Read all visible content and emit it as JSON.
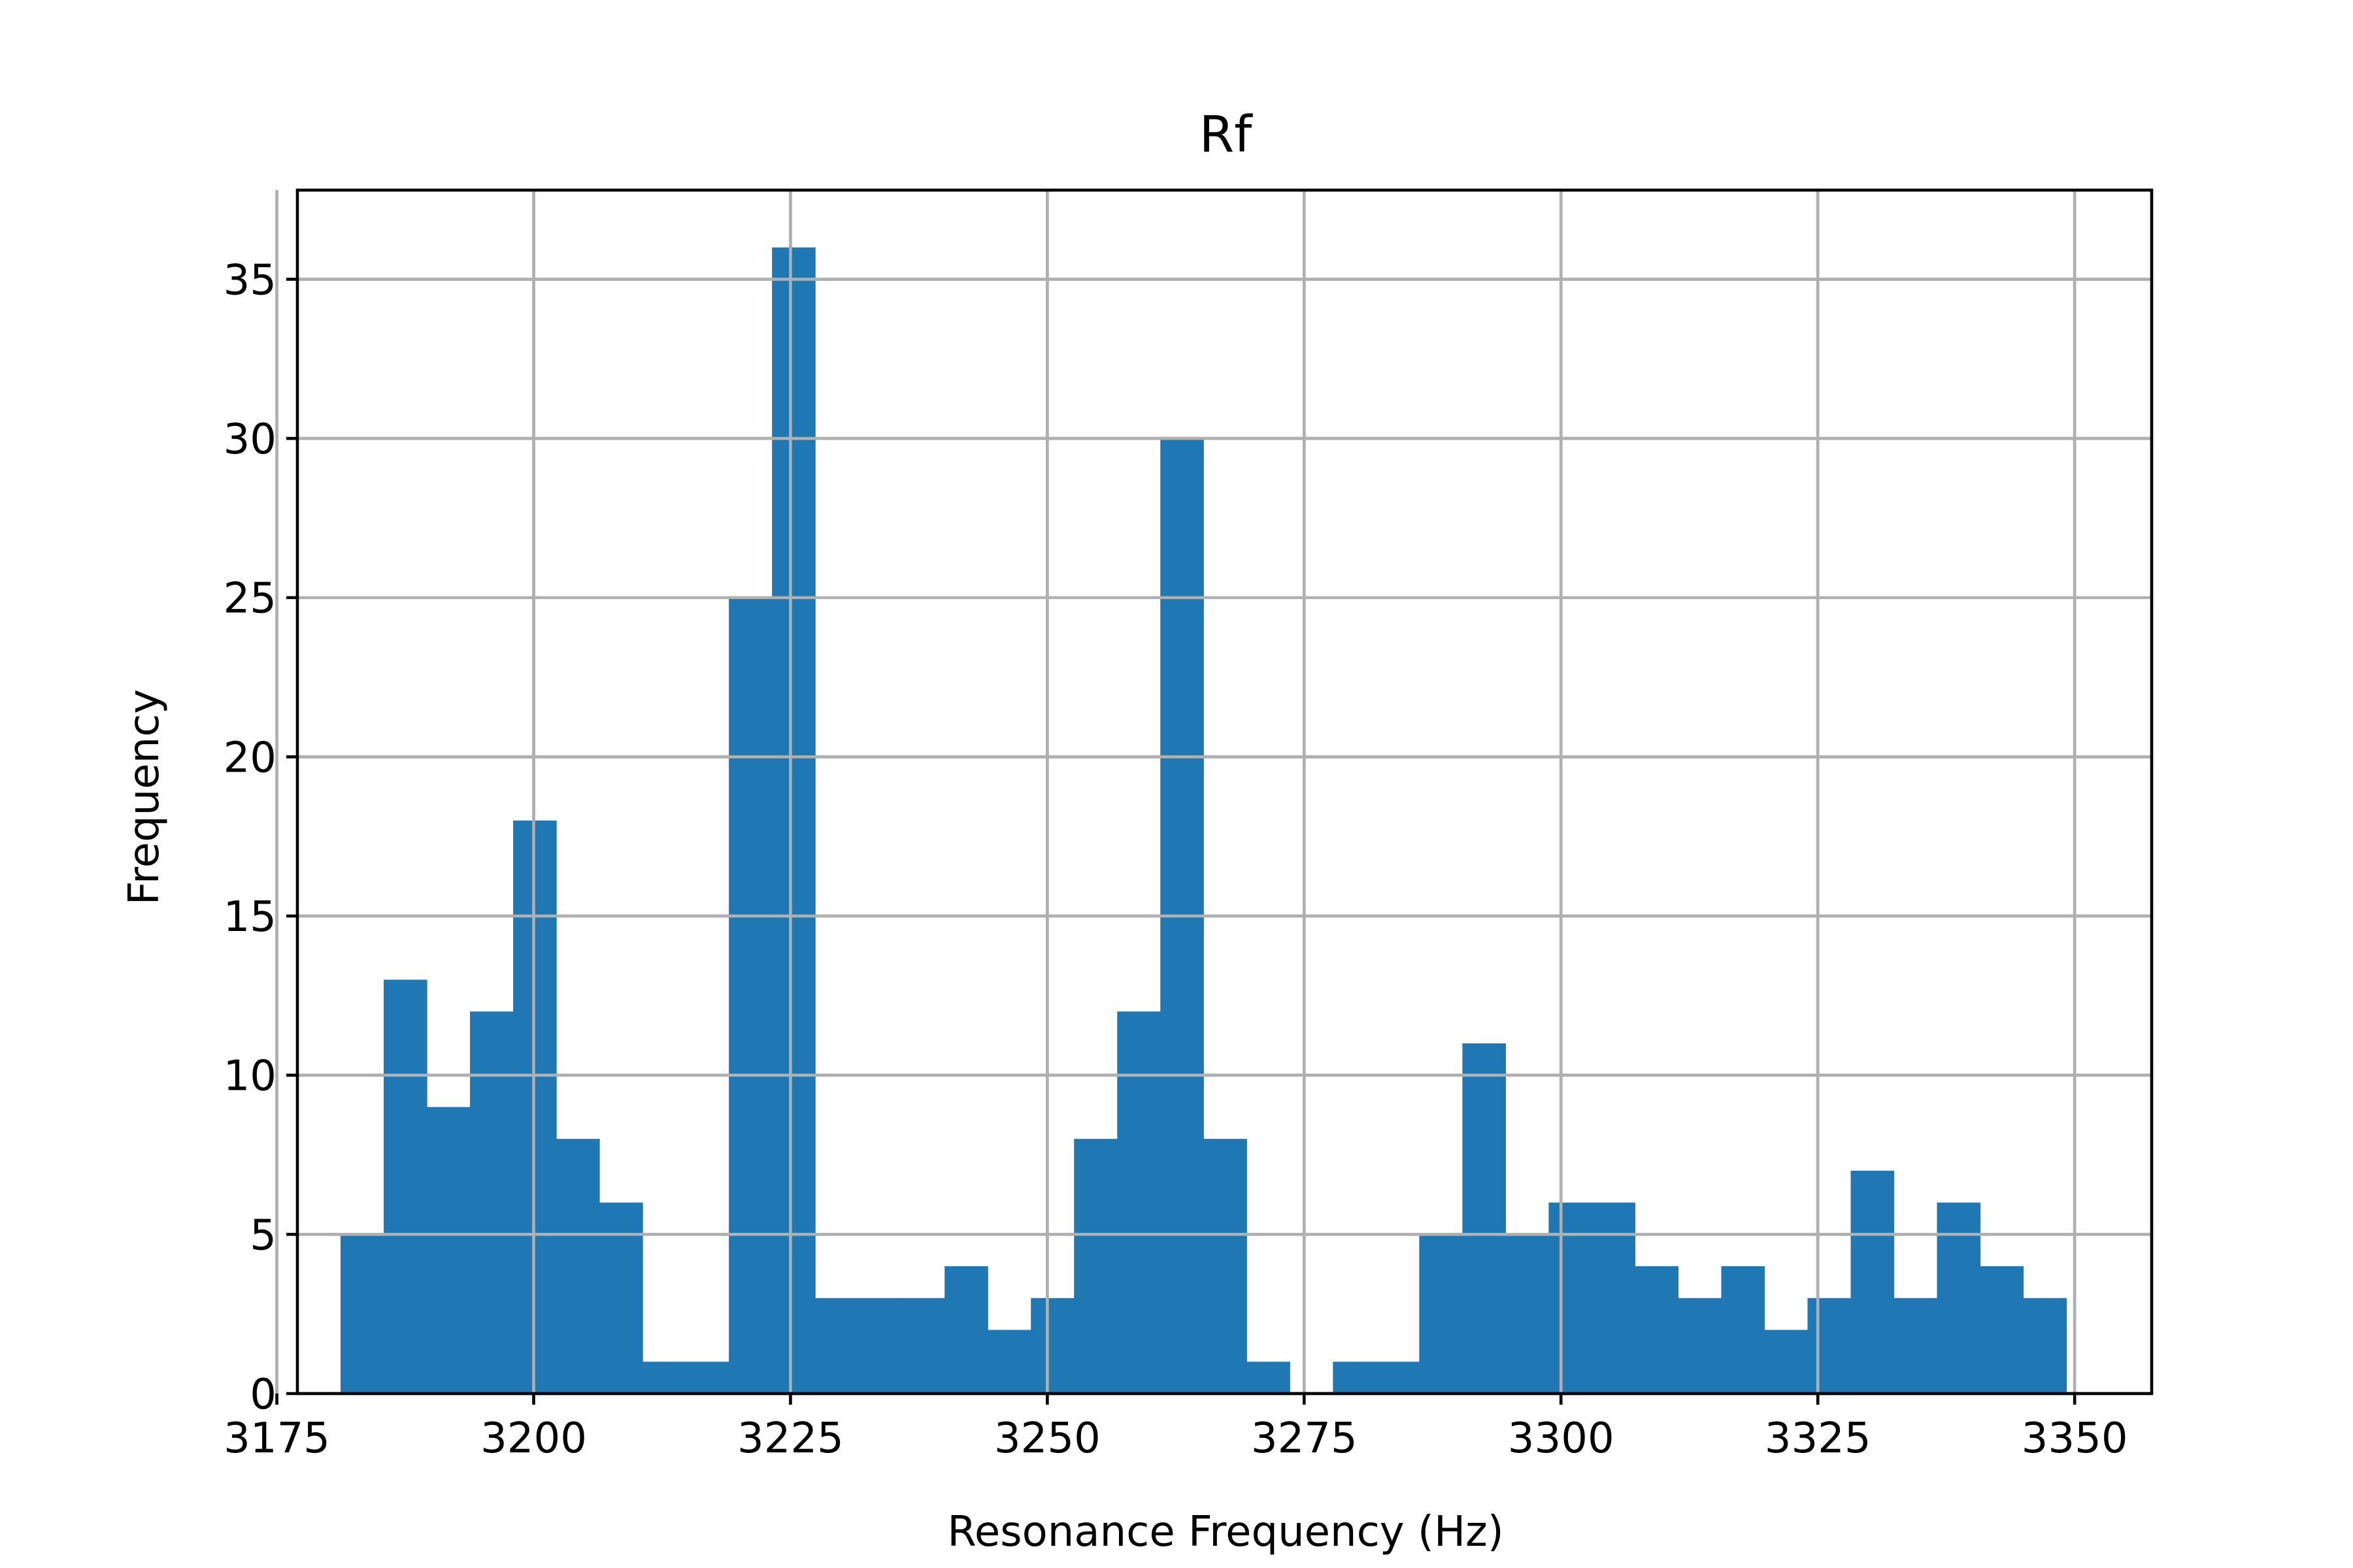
{
  "chart_data": {
    "type": "bar",
    "title": "Rf",
    "xlabel": "Resonance Frequency (Hz)",
    "ylabel": "Frequency",
    "xlim": [
      3177.0,
      3357.5
    ],
    "ylim": [
      0,
      37.8
    ],
    "xticks": [
      3175,
      3200,
      3225,
      3250,
      3275,
      3300,
      3325,
      3350
    ],
    "yticks": [
      0,
      5,
      10,
      15,
      20,
      25,
      30,
      35
    ],
    "grid": true,
    "bar_color": "#1f77b4",
    "bins": [
      {
        "x0": 3181.2,
        "x1": 3185.4,
        "count": 5
      },
      {
        "x0": 3185.4,
        "x1": 3189.6,
        "count": 13
      },
      {
        "x0": 3189.6,
        "x1": 3193.8,
        "count": 9
      },
      {
        "x0": 3193.8,
        "x1": 3198.0,
        "count": 12
      },
      {
        "x0": 3198.0,
        "x1": 3202.2,
        "count": 18
      },
      {
        "x0": 3202.2,
        "x1": 3206.4,
        "count": 8
      },
      {
        "x0": 3206.4,
        "x1": 3210.6,
        "count": 6
      },
      {
        "x0": 3210.6,
        "x1": 3214.8,
        "count": 1
      },
      {
        "x0": 3214.8,
        "x1": 3219.0,
        "count": 1
      },
      {
        "x0": 3219.0,
        "x1": 3223.2,
        "count": 25
      },
      {
        "x0": 3223.2,
        "x1": 3227.4,
        "count": 36
      },
      {
        "x0": 3227.4,
        "x1": 3231.6,
        "count": 3
      },
      {
        "x0": 3231.6,
        "x1": 3235.8,
        "count": 3
      },
      {
        "x0": 3235.8,
        "x1": 3240.0,
        "count": 3
      },
      {
        "x0": 3240.0,
        "x1": 3244.2,
        "count": 4
      },
      {
        "x0": 3244.2,
        "x1": 3248.4,
        "count": 2
      },
      {
        "x0": 3248.4,
        "x1": 3252.6,
        "count": 3
      },
      {
        "x0": 3252.6,
        "x1": 3256.8,
        "count": 8
      },
      {
        "x0": 3256.8,
        "x1": 3261.0,
        "count": 12
      },
      {
        "x0": 3261.0,
        "x1": 3265.2,
        "count": 30
      },
      {
        "x0": 3265.2,
        "x1": 3269.4,
        "count": 8
      },
      {
        "x0": 3269.4,
        "x1": 3273.6,
        "count": 1
      },
      {
        "x0": 3273.6,
        "x1": 3277.8,
        "count": 0
      },
      {
        "x0": 3277.8,
        "x1": 3282.0,
        "count": 1
      },
      {
        "x0": 3282.0,
        "x1": 3286.2,
        "count": 1
      },
      {
        "x0": 3286.2,
        "x1": 3290.4,
        "count": 5
      },
      {
        "x0": 3290.4,
        "x1": 3294.6,
        "count": 11
      },
      {
        "x0": 3294.6,
        "x1": 3298.8,
        "count": 5
      },
      {
        "x0": 3298.8,
        "x1": 3303.0,
        "count": 6
      },
      {
        "x0": 3303.0,
        "x1": 3307.2,
        "count": 6
      },
      {
        "x0": 3307.2,
        "x1": 3311.4,
        "count": 4
      },
      {
        "x0": 3311.4,
        "x1": 3315.6,
        "count": 3
      },
      {
        "x0": 3315.6,
        "x1": 3319.8,
        "count": 4
      },
      {
        "x0": 3319.8,
        "x1": 3324.0,
        "count": 2
      },
      {
        "x0": 3324.0,
        "x1": 3328.2,
        "count": 3
      },
      {
        "x0": 3328.2,
        "x1": 3332.4,
        "count": 7
      },
      {
        "x0": 3332.4,
        "x1": 3336.6,
        "count": 3
      },
      {
        "x0": 3336.6,
        "x1": 3340.8,
        "count": 6
      },
      {
        "x0": 3340.8,
        "x1": 3345.0,
        "count": 4
      },
      {
        "x0": 3345.0,
        "x1": 3349.2,
        "count": 3
      }
    ]
  }
}
